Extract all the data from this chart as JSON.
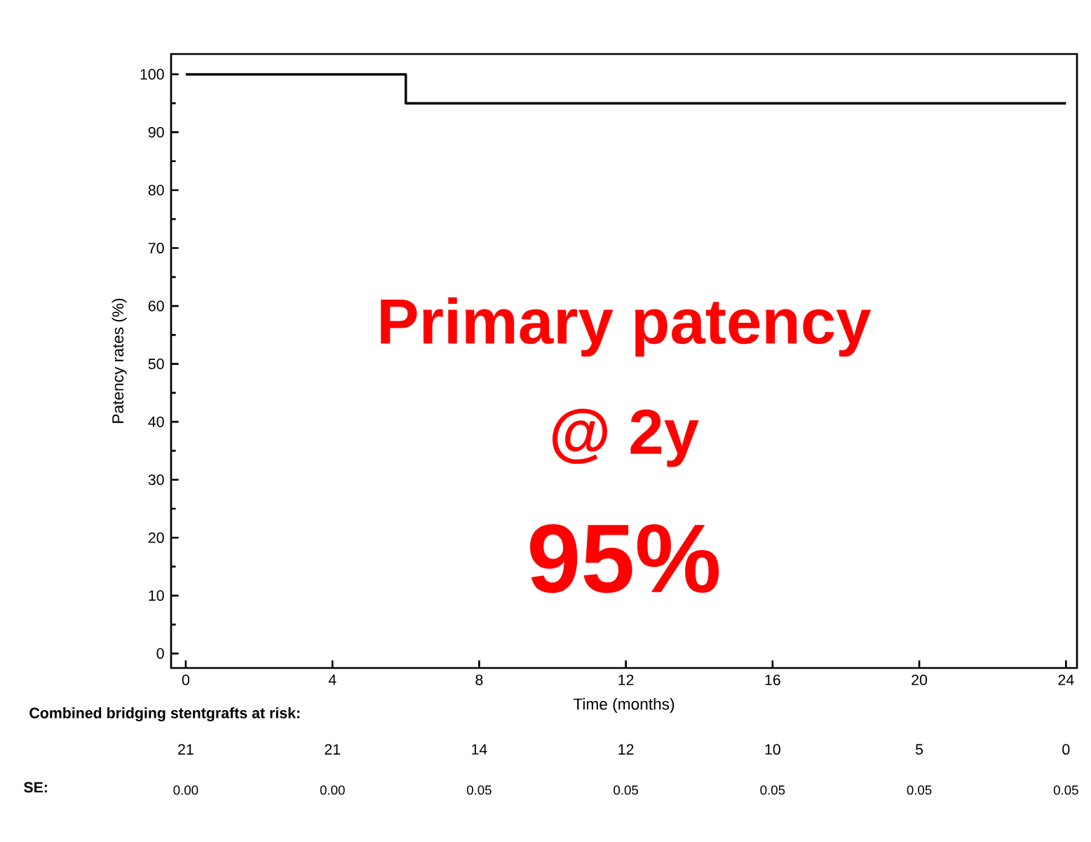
{
  "chart_data": {
    "type": "step",
    "xlabel": "Time (months)",
    "ylabel": "Patency rates (%)",
    "series": [
      {
        "color": "#000000",
        "x": [
          0,
          6,
          24
        ],
        "values": [
          100,
          95,
          95
        ]
      }
    ],
    "xlim": [
      -0.4,
      24.3
    ],
    "xticks": [
      0,
      4,
      8,
      12,
      16,
      20,
      24
    ],
    "ylim": [
      -2.5,
      103.5
    ],
    "yticks": [
      0,
      10,
      20,
      30,
      40,
      50,
      60,
      70,
      80,
      90,
      100
    ],
    "marker": "none",
    "line_style": "solid",
    "annotations": [
      "Primary patency",
      "@ 2y",
      "95%",
      "Combined bridging stentgrafts at risk:",
      "21",
      "21",
      "14",
      "12",
      "10",
      "5",
      "0",
      "SE:",
      "0.00",
      "0.00",
      "0.05",
      "0.05",
      "0.05",
      "0.05",
      "0.05"
    ]
  }
}
